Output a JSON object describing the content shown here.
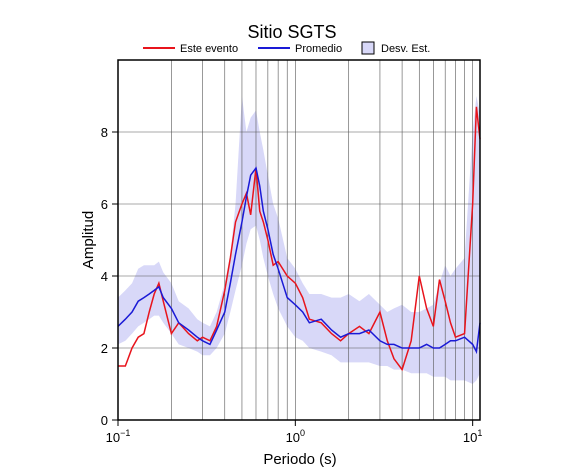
{
  "chart_data": {
    "type": "line",
    "title": "Sitio SGTS",
    "xlabel": "Periodo (s)",
    "ylabel": "Amplitud",
    "x": [
      0.1,
      0.11,
      0.12,
      0.13,
      0.14,
      0.15,
      0.16,
      0.17,
      0.18,
      0.2,
      0.22,
      0.25,
      0.28,
      0.3,
      0.33,
      0.36,
      0.4,
      0.43,
      0.46,
      0.5,
      0.53,
      0.56,
      0.6,
      0.63,
      0.66,
      0.7,
      0.75,
      0.8,
      0.9,
      1.0,
      1.1,
      1.2,
      1.4,
      1.6,
      1.8,
      2.0,
      2.3,
      2.6,
      3.0,
      3.3,
      3.6,
      4.0,
      4.5,
      5.0,
      5.5,
      6.0,
      6.5,
      7.0,
      7.5,
      8.0,
      9.0,
      10.0,
      10.5,
      11
    ],
    "series": [
      {
        "name": "Este evento",
        "color": "#e8141c",
        "values": [
          1.5,
          1.5,
          2.0,
          2.3,
          2.4,
          3.0,
          3.5,
          3.8,
          3.3,
          2.4,
          2.7,
          2.4,
          2.2,
          2.3,
          2.2,
          2.6,
          3.6,
          4.5,
          5.5,
          6.0,
          6.3,
          5.7,
          7.0,
          5.8,
          5.5,
          5.0,
          4.3,
          4.4,
          4.0,
          3.8,
          3.4,
          2.8,
          2.7,
          2.4,
          2.2,
          2.4,
          2.6,
          2.4,
          3.0,
          2.2,
          1.7,
          1.4,
          2.2,
          4.0,
          3.1,
          2.6,
          3.9,
          3.3,
          2.7,
          2.3,
          2.4,
          6.0,
          8.7,
          7.8
        ]
      },
      {
        "name": "Promedio",
        "color": "#1a1ad6",
        "values": [
          2.6,
          2.8,
          3.0,
          3.3,
          3.4,
          3.5,
          3.6,
          3.7,
          3.4,
          3.1,
          2.7,
          2.5,
          2.3,
          2.2,
          2.1,
          2.5,
          3.0,
          3.8,
          4.6,
          5.5,
          6.2,
          6.8,
          7.0,
          6.5,
          5.8,
          5.3,
          4.6,
          4.2,
          3.4,
          3.2,
          3.0,
          2.7,
          2.8,
          2.5,
          2.3,
          2.4,
          2.4,
          2.5,
          2.2,
          2.1,
          2.1,
          2.0,
          2.0,
          2.0,
          2.1,
          2.0,
          2.0,
          2.1,
          2.2,
          2.2,
          2.3,
          2.1,
          1.9,
          2.7
        ]
      }
    ],
    "band": {
      "name": "Desv. Est.",
      "color": "#d8d8f8",
      "lower": [
        2.1,
        2.2,
        2.4,
        2.6,
        2.7,
        2.8,
        2.9,
        2.9,
        2.7,
        2.4,
        2.1,
        2.0,
        1.9,
        1.8,
        1.8,
        2.0,
        2.4,
        3.0,
        3.6,
        4.3,
        4.9,
        5.3,
        5.4,
        5.0,
        4.5,
        4.0,
        3.5,
        3.1,
        2.6,
        2.3,
        2.2,
        2.0,
        1.9,
        1.8,
        1.6,
        1.6,
        1.6,
        1.6,
        1.5,
        1.5,
        1.4,
        1.4,
        1.3,
        1.3,
        1.3,
        1.2,
        1.2,
        1.2,
        1.1,
        1.1,
        1.1,
        1.0,
        1.1,
        1.3
      ],
      "upper": [
        3.4,
        3.6,
        3.8,
        4.2,
        4.3,
        4.3,
        4.3,
        4.4,
        4.1,
        3.8,
        3.3,
        3.1,
        2.8,
        2.7,
        2.6,
        3.0,
        3.8,
        4.6,
        6.0,
        9.0,
        8.0,
        8.4,
        8.6,
        8.0,
        7.5,
        6.8,
        6.0,
        5.6,
        4.5,
        4.2,
        3.8,
        3.5,
        3.5,
        3.4,
        3.4,
        3.5,
        3.3,
        3.5,
        3.2,
        3.0,
        3.1,
        3.2,
        3.0,
        3.0,
        3.1,
        3.2,
        3.8,
        4.3,
        4.0,
        4.2,
        4.5,
        8.0,
        9.0,
        8.5
      ]
    },
    "xscale": "log",
    "xlim": [
      0.1,
      11
    ],
    "ylim": [
      0,
      10
    ],
    "xticks": [
      {
        "value": 0.1,
        "label": "10",
        "exponent": "−1"
      },
      {
        "value": 1,
        "label": "10",
        "exponent": "0"
      },
      {
        "value": 10,
        "label": "10",
        "exponent": "1"
      }
    ],
    "xgrid": [
      0.2,
      0.3,
      0.4,
      0.5,
      0.6,
      0.7,
      0.8,
      0.9,
      1,
      2,
      3,
      4,
      5,
      6,
      7,
      8,
      9,
      10
    ],
    "yticks": [
      0,
      2,
      4,
      6,
      8
    ],
    "grid": true
  }
}
